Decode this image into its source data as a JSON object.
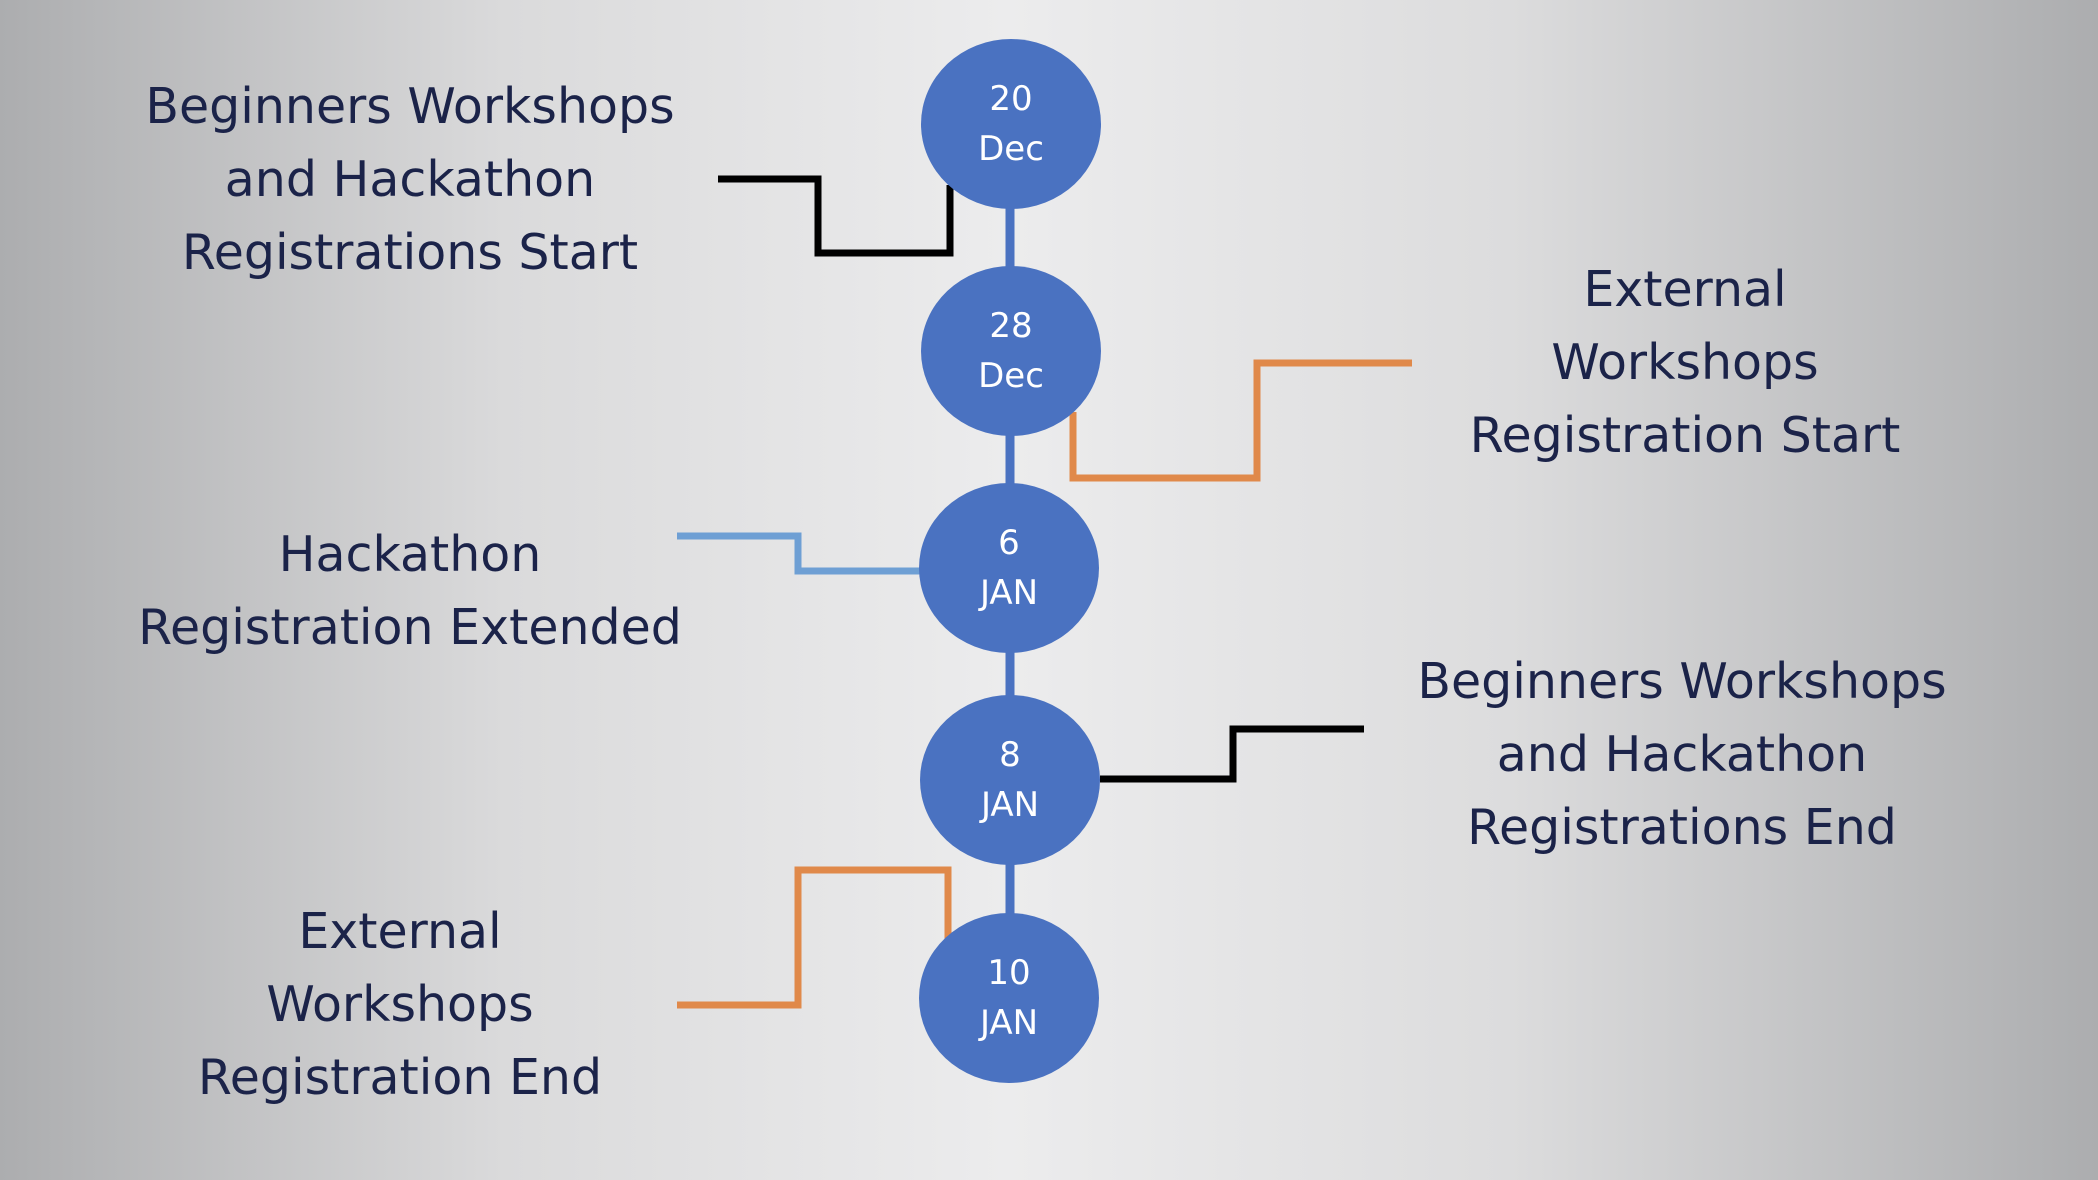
{
  "colors": {
    "node_fill": "#4a72c1",
    "spine": "#4a72c1",
    "label_text": "#1b2349",
    "connector_black": "#000000",
    "connector_orange": "#e0894a",
    "connector_light_blue": "#6e9fd4"
  },
  "timeline": {
    "nodes": [
      {
        "day": "20",
        "month": "Dec"
      },
      {
        "day": "28",
        "month": "Dec"
      },
      {
        "day": "6",
        "month": "JAN"
      },
      {
        "day": "8",
        "month": "JAN"
      },
      {
        "day": "10",
        "month": "JAN"
      }
    ]
  },
  "milestones": [
    {
      "lines": [
        "Beginners Workshops",
        "and Hackathon",
        "Registrations Start"
      ],
      "side": "left",
      "connector_color": "black"
    },
    {
      "lines": [
        "External",
        "Workshops",
        "Registration Start"
      ],
      "side": "right",
      "connector_color": "orange"
    },
    {
      "lines": [
        "Hackathon",
        "Registration Extended"
      ],
      "side": "left",
      "connector_color": "light_blue"
    },
    {
      "lines": [
        "Beginners Workshops",
        "and Hackathon",
        "Registrations End"
      ],
      "side": "right",
      "connector_color": "black"
    },
    {
      "lines": [
        "External",
        "Workshops",
        "Registration End"
      ],
      "side": "left",
      "connector_color": "orange"
    }
  ]
}
